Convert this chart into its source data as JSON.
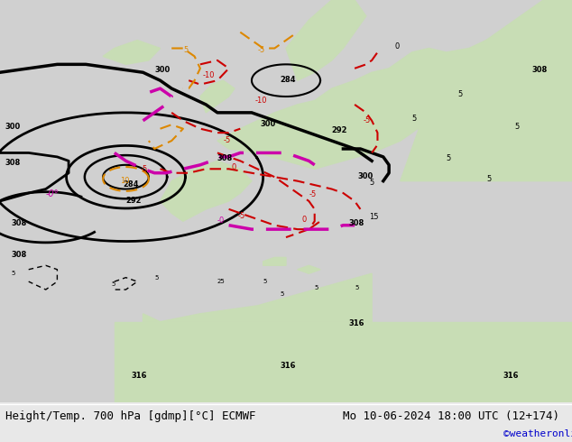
{
  "title_left": "Height/Temp. 700 hPa [gdmp][°C] ECMWF",
  "title_right": "Mo 10-06-2024 18:00 UTC (12+174)",
  "credit": "©weatheronline.co.uk",
  "bg_color": "#e8e8e8",
  "land_color": "#c8ddb5",
  "sea_color": "#d0d0d0",
  "fig_width": 6.34,
  "fig_height": 4.9,
  "dpi": 100,
  "title_fontsize": 9,
  "credit_fontsize": 8,
  "credit_color": "#0000cc"
}
